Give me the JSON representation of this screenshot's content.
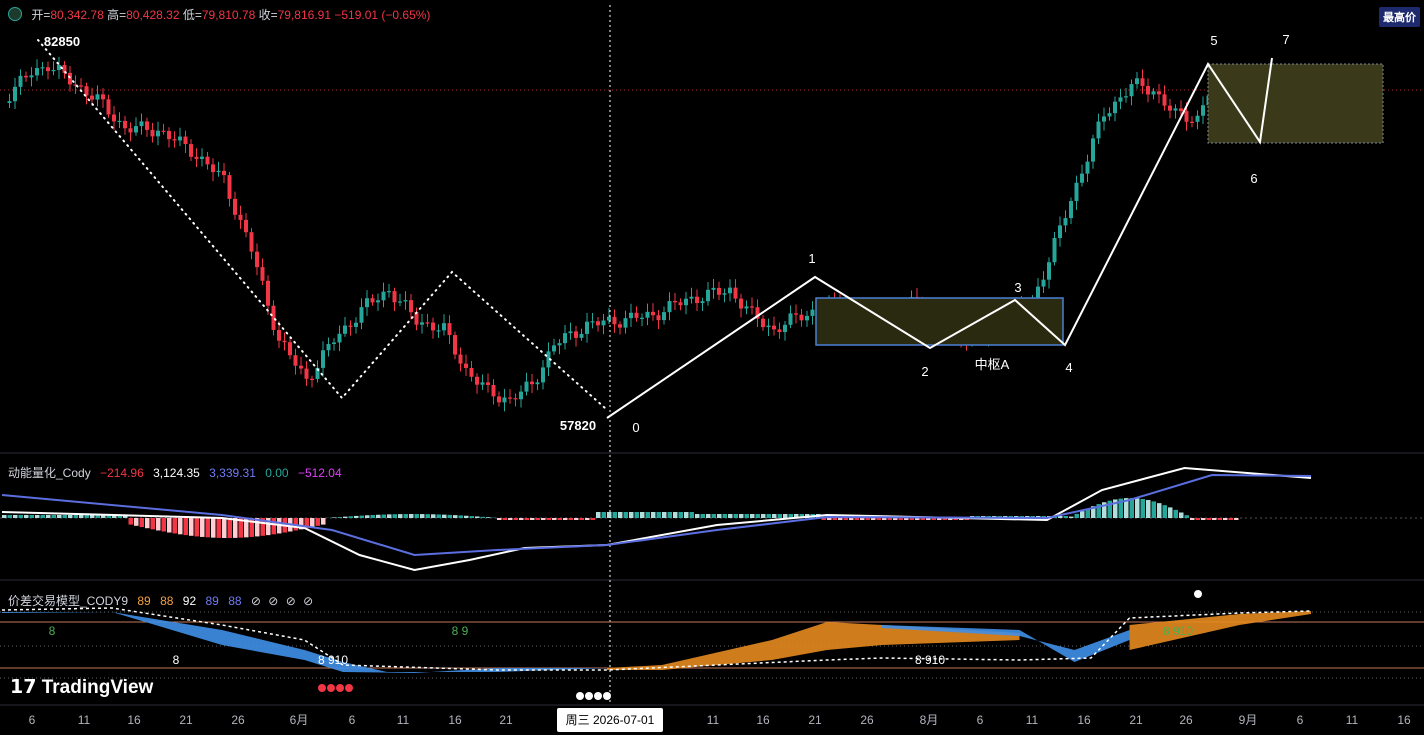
{
  "header": {
    "open_label": "开=",
    "open": "80,342.78",
    "high_label": "高=",
    "high": "80,428.32",
    "low_label": "低=",
    "low": "79,810.78",
    "close_label": "收=",
    "close": "79,816.91",
    "change": "−519.01 (−0.65%)"
  },
  "badge_label": "最高价",
  "chart_data": {
    "type": "candlestick",
    "title": "",
    "price_labels": {
      "high": "82850",
      "low": "57820"
    },
    "wave_labels": [
      "0",
      "1",
      "2",
      "3",
      "4",
      "5",
      "6",
      "7"
    ],
    "pivot_label": "中枢A",
    "wave_points": [
      57820,
      70300,
      66000,
      68300,
      66400,
      82500,
      74000,
      82800
    ],
    "colors": {
      "up": "#26a69a",
      "down": "#f23645",
      "wave": "#ffffff",
      "pivot_box": "#4a7fd4",
      "zone": "#3a3a1a"
    }
  },
  "macd": {
    "name": "动能量化_Cody",
    "v1": "−214.96",
    "v2": "3,124.35",
    "v3": "3,339.31",
    "v4": "0.00",
    "v5": "−512.04",
    "colors": {
      "v1": "#f23645",
      "v2": "#ffffff",
      "v3": "#6f7cf5",
      "v4": "#26a69a",
      "v5": "#e040fb"
    }
  },
  "model": {
    "name": "价差交易模型_CODY9",
    "v1": "89",
    "v2": "88",
    "v3": "92",
    "v4": "89",
    "v5": "88",
    "v6": "⊘",
    "v7": "⊘",
    "v8": "⊘",
    "v9": "⊘",
    "labels": [
      "8",
      "8 9",
      "8",
      "8 910",
      "8 910",
      "8 910"
    ],
    "colors": {
      "v1": "#f5a142",
      "v2": "#f5a142",
      "v3": "#ffffff",
      "v4": "#6f7cf5",
      "v5": "#6f7cf5"
    }
  },
  "brand": "TradingView",
  "x_axis": {
    "ticks": [
      "6",
      "11",
      "16",
      "21",
      "26",
      "6月",
      "6",
      "11",
      "16",
      "21",
      "11",
      "16",
      "21",
      "26",
      "8月",
      "6",
      "11",
      "16",
      "21",
      "26",
      "9月",
      "6",
      "11",
      "16"
    ],
    "crosshair_label": "周三  2026-07-01"
  }
}
